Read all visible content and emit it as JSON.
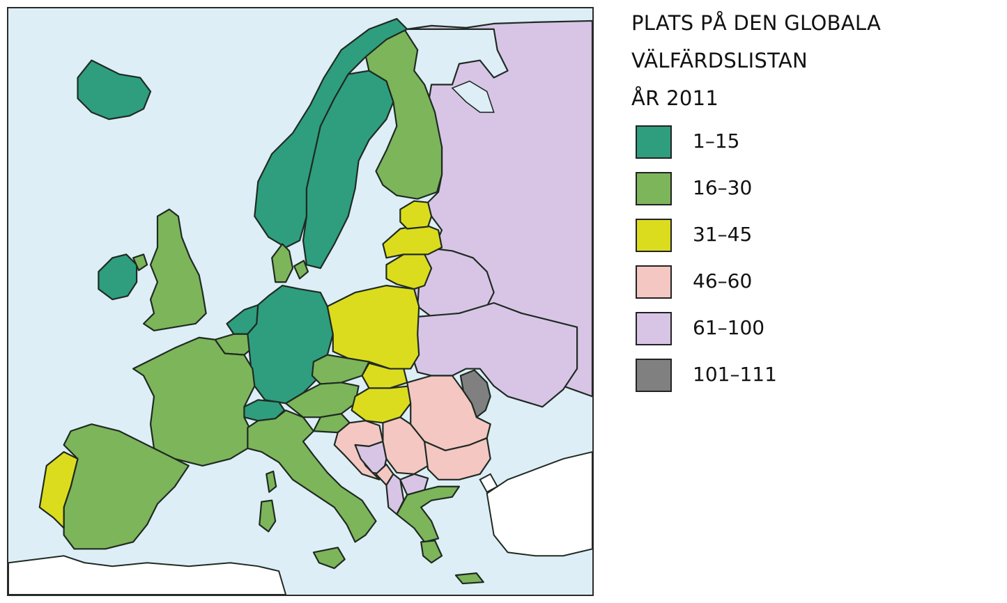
{
  "legend": {
    "title_lines": [
      "PLATS PÅ DEN GLOBALA",
      "VÄLFÄRDSLISTAN",
      "ÅR 2011"
    ],
    "items": [
      {
        "label": "1–15",
        "color": "#2e9e7e"
      },
      {
        "label": "16–30",
        "color": "#7db55a"
      },
      {
        "label": "31–45",
        "color": "#dcdc1e"
      },
      {
        "label": "46–60",
        "color": "#f4c7c3"
      },
      {
        "label": "61–100",
        "color": "#d8c5e6"
      },
      {
        "label": "101–111",
        "color": "#808080"
      }
    ]
  },
  "map": {
    "sea_color": "#ddeef6",
    "outside_land_color": "#ffffff",
    "regions": [
      {
        "name": "iceland",
        "rank_class": "1–15"
      },
      {
        "name": "norway",
        "rank_class": "1–15"
      },
      {
        "name": "sweden",
        "rank_class": "1–15"
      },
      {
        "name": "finland",
        "rank_class": "16–30"
      },
      {
        "name": "denmark",
        "rank_class": "16–30"
      },
      {
        "name": "ireland",
        "rank_class": "1–15"
      },
      {
        "name": "united-kingdom",
        "rank_class": "16–30"
      },
      {
        "name": "netherlands",
        "rank_class": "1–15"
      },
      {
        "name": "belgium",
        "rank_class": "16–30"
      },
      {
        "name": "germany",
        "rank_class": "1–15"
      },
      {
        "name": "switzerland",
        "rank_class": "1–15"
      },
      {
        "name": "france",
        "rank_class": "16–30"
      },
      {
        "name": "spain",
        "rank_class": "16–30"
      },
      {
        "name": "portugal",
        "rank_class": "31–45"
      },
      {
        "name": "italy",
        "rank_class": "16–30"
      },
      {
        "name": "austria",
        "rank_class": "16–30"
      },
      {
        "name": "czech-republic",
        "rank_class": "16–30"
      },
      {
        "name": "poland",
        "rank_class": "31–45"
      },
      {
        "name": "estonia",
        "rank_class": "31–45"
      },
      {
        "name": "latvia",
        "rank_class": "31–45"
      },
      {
        "name": "lithuania",
        "rank_class": "31–45"
      },
      {
        "name": "slovakia",
        "rank_class": "31–45"
      },
      {
        "name": "hungary",
        "rank_class": "31–45"
      },
      {
        "name": "slovenia",
        "rank_class": "16–30"
      },
      {
        "name": "croatia",
        "rank_class": "46–60"
      },
      {
        "name": "bosnia",
        "rank_class": "61–100"
      },
      {
        "name": "serbia",
        "rank_class": "46–60"
      },
      {
        "name": "montenegro",
        "rank_class": "46–60"
      },
      {
        "name": "albania",
        "rank_class": "61–100"
      },
      {
        "name": "north-macedonia",
        "rank_class": "61–100"
      },
      {
        "name": "romania",
        "rank_class": "46–60"
      },
      {
        "name": "bulgaria",
        "rank_class": "46–60"
      },
      {
        "name": "greece",
        "rank_class": "16–30"
      },
      {
        "name": "moldova",
        "rank_class": "101–111"
      },
      {
        "name": "belarus",
        "rank_class": "61–100"
      },
      {
        "name": "ukraine",
        "rank_class": "61–100"
      },
      {
        "name": "russia",
        "rank_class": "61–100"
      }
    ]
  }
}
